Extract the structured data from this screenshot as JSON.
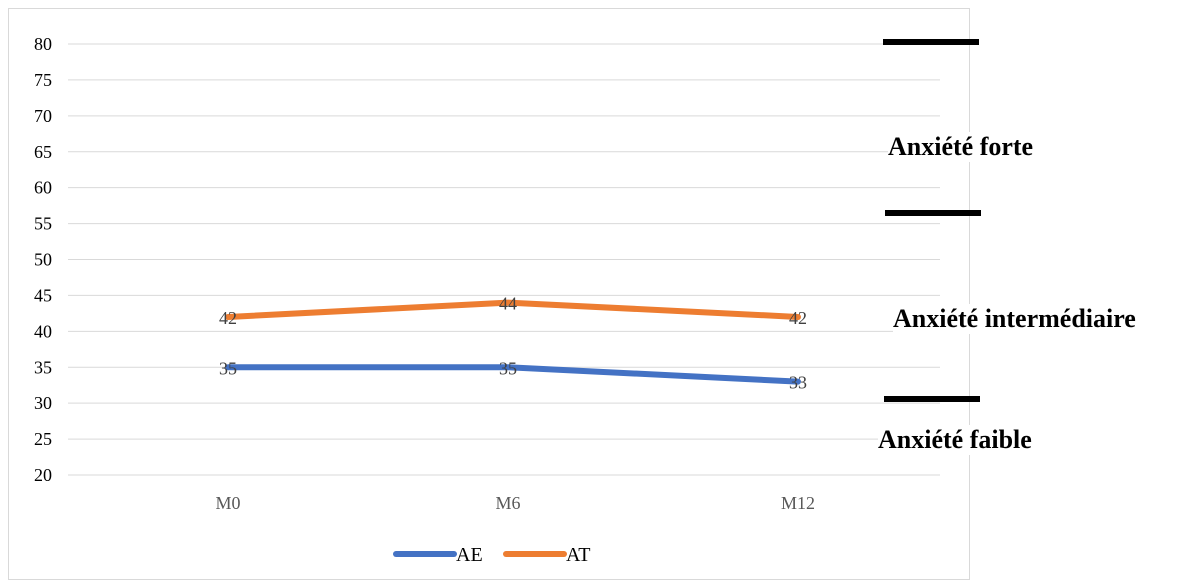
{
  "chart_data": {
    "type": "line",
    "categories": [
      "M0",
      "M6",
      "M12"
    ],
    "series": [
      {
        "name": "AE",
        "values": [
          35,
          35,
          33
        ],
        "color": "#4472C4"
      },
      {
        "name": "AT",
        "values": [
          42,
          44,
          42
        ],
        "color": "#ED7D31"
      }
    ],
    "ylim": [
      20,
      80
    ],
    "yticks": [
      20,
      25,
      30,
      35,
      40,
      45,
      50,
      55,
      60,
      65,
      70,
      75,
      80
    ],
    "grid": true,
    "legend": "bottom",
    "data_labels": true
  },
  "zones": {
    "high": "Anxiété forte",
    "mid": "Anxiété intermédiaire",
    "low": "Anxiété faible"
  }
}
